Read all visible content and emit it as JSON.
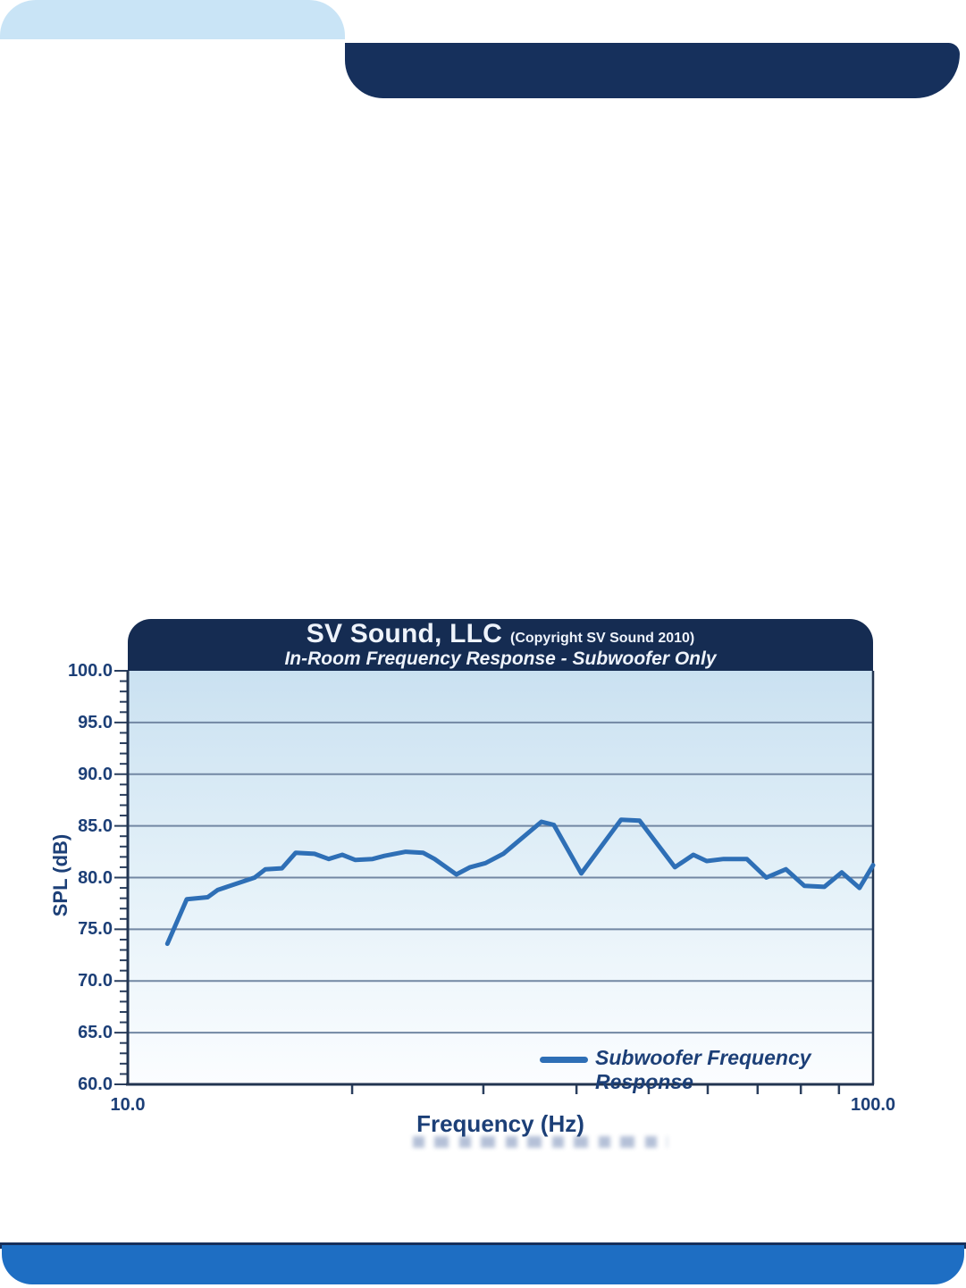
{
  "page": {
    "bg": "#ffffff"
  },
  "decor": {
    "top_left_tab_color": "#c9e4f6",
    "top_bar_color": "#16305c",
    "bottom_strip_color": "#16305c",
    "bottom_bar_color": "#1e6ec3"
  },
  "chart": {
    "header": {
      "title": "SV Sound, LLC",
      "title_suffix": "(Copyright SV Sound 2010)",
      "subtitle": "In-Room Frequency Response - Subwoofer Only",
      "bg_color": "#152c52",
      "text_color": "#eef3fb"
    },
    "colors": {
      "plot_bg_top": "#cae1f1",
      "plot_bg_mid": "#e6f2f9",
      "plot_bg_bottom": "#fbfdff",
      "gridline": "#7287a3",
      "axis": "#223450",
      "tick": "#2b3f5e",
      "label_text": "#1c3f77"
    },
    "legend": {
      "label": "Subwoofer Frequency Response"
    }
  },
  "chart_data": {
    "type": "line",
    "title": "SV Sound, LLC (Copyright SV Sound 2010)",
    "subtitle": "In-Room Frequency Response - Subwoofer Only",
    "xlabel": "Frequency (Hz)",
    "ylabel": "SPL (dB)",
    "x_scale": "log",
    "xlim": [
      10,
      100
    ],
    "ylim": [
      60,
      100
    ],
    "y_ticks": [
      100,
      95,
      90,
      85,
      80,
      75,
      70,
      65,
      60
    ],
    "y_minor_step": 1,
    "x_tick_labels": [
      {
        "value": 10,
        "label": "10.0"
      },
      {
        "value": 100,
        "label": "100.0"
      }
    ],
    "x_minor_ticks": [
      20,
      30,
      40,
      50,
      60,
      70,
      80,
      90
    ],
    "grid": true,
    "legend_position": "bottom-right",
    "series": [
      {
        "name": "Subwoofer Frequency Response",
        "color": "#2e6fb6",
        "points": [
          [
            11.3,
            73.6
          ],
          [
            12.0,
            77.9
          ],
          [
            12.8,
            78.1
          ],
          [
            13.2,
            78.8
          ],
          [
            14.8,
            80.0
          ],
          [
            15.3,
            80.8
          ],
          [
            16.1,
            80.9
          ],
          [
            16.8,
            82.4
          ],
          [
            17.8,
            82.3
          ],
          [
            18.6,
            81.8
          ],
          [
            19.4,
            82.2
          ],
          [
            20.2,
            81.7
          ],
          [
            21.3,
            81.8
          ],
          [
            22.1,
            82.1
          ],
          [
            23.6,
            82.5
          ],
          [
            24.9,
            82.4
          ],
          [
            25.8,
            81.8
          ],
          [
            27.6,
            80.3
          ],
          [
            28.8,
            81.0
          ],
          [
            30.2,
            81.4
          ],
          [
            31.9,
            82.3
          ],
          [
            35.9,
            85.4
          ],
          [
            37.3,
            85.1
          ],
          [
            40.6,
            80.4
          ],
          [
            45.9,
            85.6
          ],
          [
            48.6,
            85.5
          ],
          [
            54.2,
            81.0
          ],
          [
            57.4,
            82.2
          ],
          [
            59.8,
            81.6
          ],
          [
            63.0,
            81.8
          ],
          [
            67.7,
            81.8
          ],
          [
            71.9,
            80.0
          ],
          [
            76.4,
            80.8
          ],
          [
            80.9,
            79.2
          ],
          [
            86.0,
            79.1
          ],
          [
            90.8,
            80.5
          ],
          [
            95.9,
            79.0
          ],
          [
            100.0,
            81.2
          ]
        ]
      }
    ]
  }
}
